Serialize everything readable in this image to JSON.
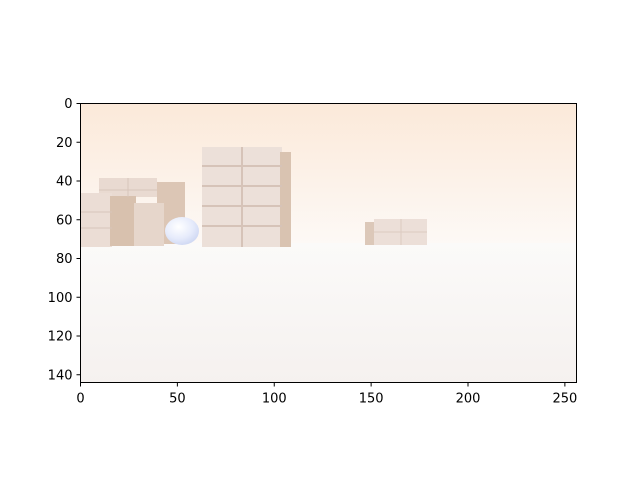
{
  "figure": {
    "type": "image-plot",
    "description_visible": "rendered 3D scene of stacked boxes and a pale sphere on a white floor",
    "colors": {
      "background": "#ffffff",
      "axes_frame": "#000000",
      "sky_top": "#fbe9d9",
      "sky_bottom": "#fdf8f4",
      "floor": "#f8f5f3",
      "box_face": "#ecddd6",
      "box_side": "#d9c3b2",
      "sphere": "#e4e9fb"
    }
  },
  "chart_data": {
    "type": "image",
    "image_size": [
      256,
      144
    ],
    "xlim": [
      0,
      256
    ],
    "ylim": [
      144,
      0
    ],
    "x_ticks": [
      0,
      50,
      100,
      150,
      200,
      250
    ],
    "y_ticks": [
      0,
      20,
      40,
      60,
      80,
      100,
      120,
      140
    ],
    "x_tick_labels": [
      "0",
      "50",
      "100",
      "150",
      "200",
      "250"
    ],
    "y_tick_labels": [
      "0",
      "20",
      "40",
      "60",
      "80",
      "100",
      "120",
      "140"
    ],
    "horizon_y": 73,
    "scene_objects": [
      {
        "name": "left-box-stack",
        "x": [
          0,
          54
        ],
        "y": [
          39,
          74
        ]
      },
      {
        "name": "center-box-tower",
        "x": [
          63,
          109
        ],
        "y": [
          23,
          74
        ]
      },
      {
        "name": "sphere",
        "x": [
          44,
          62
        ],
        "y": [
          59,
          74
        ]
      },
      {
        "name": "right-box",
        "x": [
          147,
          179
        ],
        "y": [
          60,
          73
        ]
      }
    ]
  }
}
